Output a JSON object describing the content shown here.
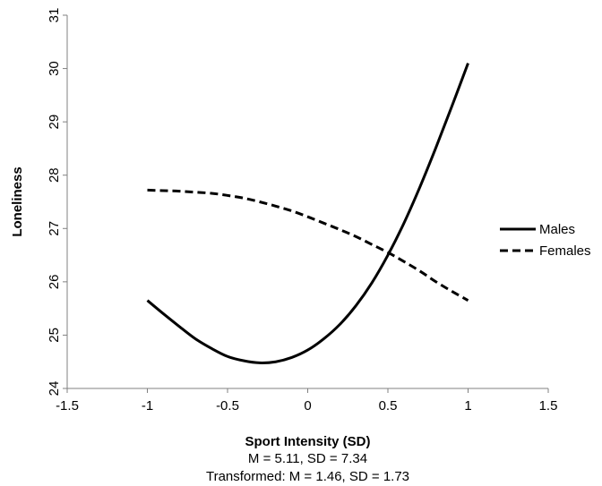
{
  "chart_data": {
    "type": "line",
    "xlabel": "Sport Intensity (SD)",
    "ylabel": "Loneliness",
    "xlim": [
      -1.5,
      1.5
    ],
    "ylim": [
      24,
      31
    ],
    "x_ticks": [
      -1.5,
      -1,
      -0.5,
      0,
      0.5,
      1,
      1.5
    ],
    "x_tick_labels": [
      "-1.5",
      "-1",
      "-0.5",
      "0",
      "0.5",
      "1",
      "1.5"
    ],
    "y_ticks": [
      24,
      25,
      26,
      27,
      28,
      29,
      30,
      31
    ],
    "y_tick_labels": [
      "24",
      "25",
      "26",
      "27",
      "28",
      "29",
      "30",
      "31"
    ],
    "notes": [
      "M =  5.11, SD = 7.34",
      "Transformed: M =  1.46, SD = 1.73"
    ],
    "grid": false,
    "legend_position": "right",
    "series": [
      {
        "name": "Males",
        "style": "solid",
        "color": "#000000",
        "x": [
          -1,
          -0.9,
          -0.8,
          -0.7,
          -0.6,
          -0.5,
          -0.4,
          -0.3,
          -0.2,
          -0.1,
          0,
          0.1,
          0.2,
          0.3,
          0.4,
          0.5,
          0.6,
          0.7,
          0.8,
          0.9,
          1
        ],
        "y": [
          25.65,
          25.4,
          25.16,
          24.93,
          24.75,
          24.6,
          24.52,
          24.48,
          24.5,
          24.58,
          24.72,
          24.93,
          25.2,
          25.55,
          25.98,
          26.5,
          27.1,
          27.78,
          28.52,
          29.3,
          30.1
        ]
      },
      {
        "name": "Females",
        "style": "dashed",
        "color": "#000000",
        "x": [
          -1,
          -0.9,
          -0.8,
          -0.7,
          -0.6,
          -0.5,
          -0.4,
          -0.3,
          -0.2,
          -0.1,
          0,
          0.1,
          0.2,
          0.3,
          0.4,
          0.5,
          0.6,
          0.7,
          0.8,
          0.9,
          1
        ],
        "y": [
          27.72,
          27.71,
          27.7,
          27.68,
          27.66,
          27.62,
          27.57,
          27.5,
          27.42,
          27.33,
          27.22,
          27.1,
          26.98,
          26.85,
          26.7,
          26.55,
          26.38,
          26.2,
          26.0,
          25.82,
          25.65
        ]
      }
    ]
  }
}
